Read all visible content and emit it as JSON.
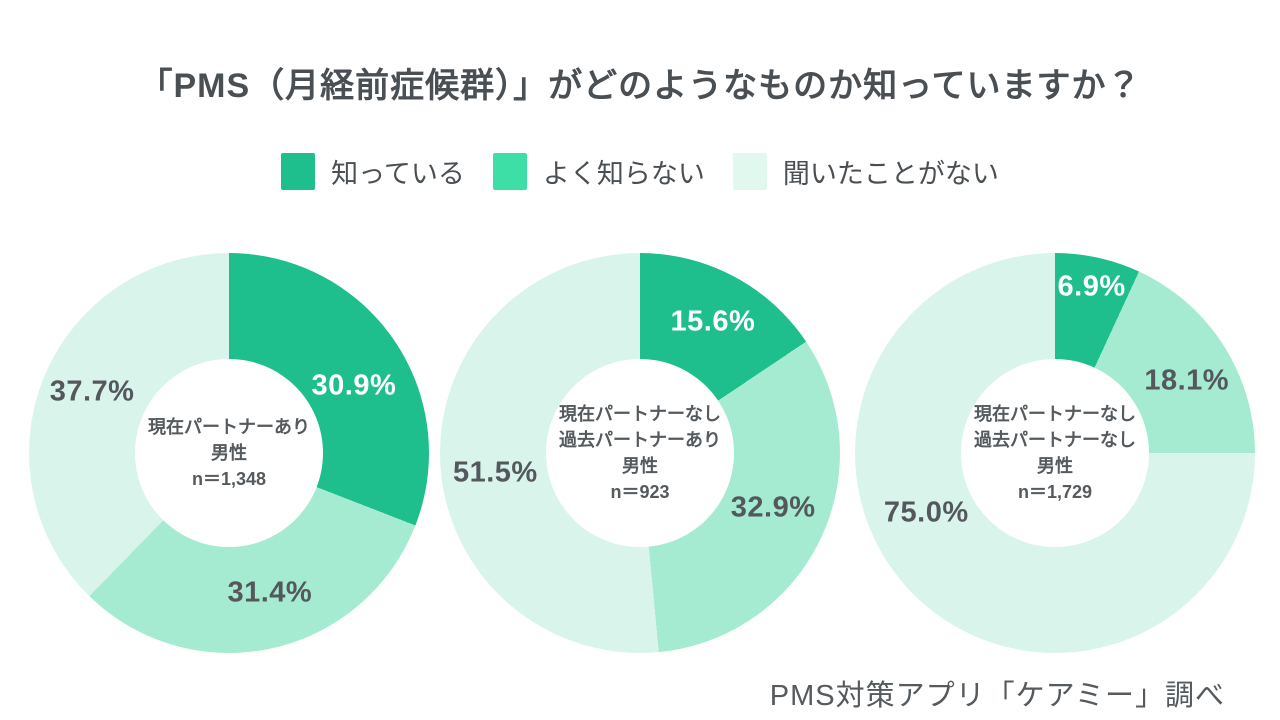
{
  "chart_data": {
    "type": "pie",
    "variant": "donut",
    "title": "「PMS（月経前症候群）」がどのようなものか知っていますか？",
    "source": "PMS対策アプリ「ケアミー」調べ",
    "legend": [
      {
        "label": "知っている",
        "color": "#1fbe8d"
      },
      {
        "label": "よく知らない",
        "color": "#3edfa6"
      },
      {
        "label": "聞いたことがない",
        "color": "#e1f8ef"
      }
    ],
    "slice_colors": [
      "#1fbe8d",
      "#a5ebd1",
      "#d9f5eb"
    ],
    "label_colors": [
      "#ffffff",
      "#54585d",
      "#54585d"
    ],
    "start_angle_deg": 0,
    "direction": "clockwise",
    "hole_ratio": 0.47,
    "charts": [
      {
        "center_lines": [
          "現在パートナーあり",
          "男性",
          "n＝1,348"
        ],
        "categories": [
          "知っている",
          "よく知らない",
          "聞いたことがない"
        ],
        "values": [
          30.9,
          31.4,
          37.7
        ],
        "labels": [
          "30.9%",
          "31.4%",
          "37.7%"
        ],
        "label_hints": [
          [
            0.71,
            6
          ],
          [
            0.73,
            -4
          ],
          [
            0.75,
            2
          ]
        ]
      },
      {
        "center_lines": [
          "現在パートナーなし",
          "過去パートナーあり",
          "男性",
          "n＝923"
        ],
        "categories": [
          "知っている",
          "よく知らない",
          "聞いたことがない"
        ],
        "values": [
          15.6,
          32.9,
          51.5
        ],
        "labels": [
          "15.6%",
          "32.9%",
          "51.5%"
        ],
        "label_hints": [
          [
            0.75,
            1
          ],
          [
            0.72,
            -3
          ],
          [
            0.73,
            -5
          ]
        ]
      },
      {
        "center_lines": [
          "現在パートナーなし",
          "過去パートナーなし",
          "男性",
          "n＝1,729"
        ],
        "categories": [
          "知っている",
          "よく知らない",
          "聞いたことがない"
        ],
        "values": [
          6.9,
          18.1,
          75.0
        ],
        "labels": [
          "6.9%",
          "18.1%",
          "75.0%"
        ],
        "label_hints": [
          [
            0.85,
            0
          ],
          [
            0.75,
            4
          ],
          [
            0.71,
            20
          ]
        ]
      }
    ]
  }
}
